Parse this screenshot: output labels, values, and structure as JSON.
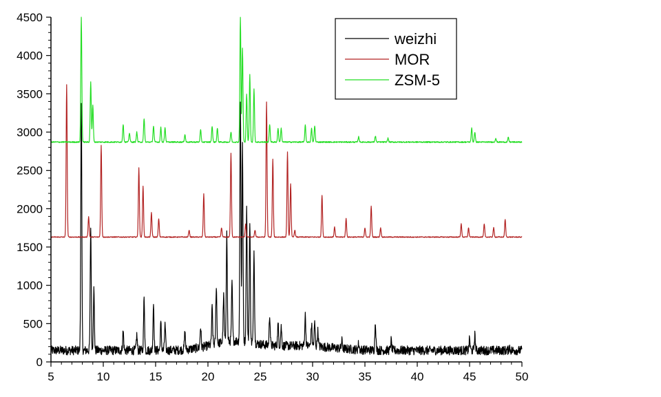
{
  "chart_data": {
    "type": "line",
    "title": "",
    "xlabel": "",
    "ylabel": "",
    "xlim": [
      5,
      50
    ],
    "ylim": [
      0,
      4500
    ],
    "x_ticks": [
      5,
      10,
      15,
      20,
      25,
      30,
      35,
      40,
      45,
      50
    ],
    "y_ticks": [
      0,
      500,
      1000,
      1500,
      2000,
      2500,
      3000,
      3500,
      4000,
      4500
    ],
    "grid": false,
    "legend_position": "top-right",
    "series": [
      {
        "name": "weizhi",
        "color": "#000000",
        "baseline": 150,
        "peaks": [
          [
            7.9,
            3350
          ],
          [
            8.8,
            1750
          ],
          [
            9.1,
            950
          ],
          [
            11.9,
            400
          ],
          [
            13.2,
            350
          ],
          [
            13.9,
            830
          ],
          [
            14.8,
            760
          ],
          [
            15.5,
            500
          ],
          [
            15.9,
            480
          ],
          [
            17.8,
            370
          ],
          [
            19.3,
            420
          ],
          [
            20.4,
            630
          ],
          [
            20.8,
            900
          ],
          [
            21.5,
            750
          ],
          [
            21.8,
            1560
          ],
          [
            22.3,
            900
          ],
          [
            23.1,
            3300
          ],
          [
            23.3,
            2700
          ],
          [
            23.7,
            1900
          ],
          [
            24.0,
            1700
          ],
          [
            24.4,
            1350
          ],
          [
            25.9,
            550
          ],
          [
            26.7,
            430
          ],
          [
            27.0,
            400
          ],
          [
            29.3,
            550
          ],
          [
            29.9,
            430
          ],
          [
            30.2,
            450
          ],
          [
            30.5,
            350
          ],
          [
            32.8,
            250
          ],
          [
            34.4,
            230
          ],
          [
            36.0,
            520
          ],
          [
            37.5,
            280
          ],
          [
            45.0,
            300
          ],
          [
            45.5,
            350
          ],
          [
            48.8,
            200
          ]
        ]
      },
      {
        "name": "MOR",
        "color": "#b22222",
        "baseline": 1630,
        "peaks": [
          [
            6.5,
            3620
          ],
          [
            8.6,
            1900
          ],
          [
            9.8,
            2830
          ],
          [
            13.4,
            2530
          ],
          [
            13.8,
            2300
          ],
          [
            14.6,
            1950
          ],
          [
            15.3,
            1870
          ],
          [
            18.2,
            1720
          ],
          [
            19.6,
            2190
          ],
          [
            21.3,
            1750
          ],
          [
            22.2,
            2730
          ],
          [
            23.6,
            1800
          ],
          [
            24.5,
            1720
          ],
          [
            25.6,
            3390
          ],
          [
            26.2,
            2650
          ],
          [
            27.6,
            2740
          ],
          [
            27.9,
            2330
          ],
          [
            28.3,
            1720
          ],
          [
            30.9,
            2180
          ],
          [
            32.1,
            1760
          ],
          [
            33.2,
            1870
          ],
          [
            35.0,
            1750
          ],
          [
            35.6,
            2030
          ],
          [
            36.5,
            1750
          ],
          [
            44.2,
            1800
          ],
          [
            44.9,
            1750
          ],
          [
            46.4,
            1800
          ],
          [
            47.3,
            1750
          ],
          [
            48.4,
            1860
          ]
        ]
      },
      {
        "name": "ZSM-5",
        "color": "#22dd22",
        "baseline": 2870,
        "peaks": [
          [
            7.9,
            4500
          ],
          [
            8.8,
            3660
          ],
          [
            9.0,
            3350
          ],
          [
            11.9,
            3100
          ],
          [
            12.5,
            2990
          ],
          [
            13.2,
            3000
          ],
          [
            13.9,
            3180
          ],
          [
            14.8,
            3080
          ],
          [
            15.5,
            3060
          ],
          [
            15.9,
            3060
          ],
          [
            17.8,
            2970
          ],
          [
            19.3,
            3030
          ],
          [
            20.4,
            3080
          ],
          [
            20.9,
            3050
          ],
          [
            22.2,
            3000
          ],
          [
            23.1,
            4500
          ],
          [
            23.3,
            4100
          ],
          [
            23.7,
            3500
          ],
          [
            24.0,
            3750
          ],
          [
            24.4,
            3560
          ],
          [
            25.9,
            3100
          ],
          [
            26.7,
            3050
          ],
          [
            27.0,
            3050
          ],
          [
            29.3,
            3090
          ],
          [
            29.9,
            3050
          ],
          [
            30.2,
            3080
          ],
          [
            34.4,
            2940
          ],
          [
            36.0,
            2950
          ],
          [
            37.2,
            2920
          ],
          [
            45.2,
            3050
          ],
          [
            45.5,
            3000
          ],
          [
            47.5,
            2920
          ],
          [
            48.7,
            2930
          ]
        ]
      }
    ]
  }
}
